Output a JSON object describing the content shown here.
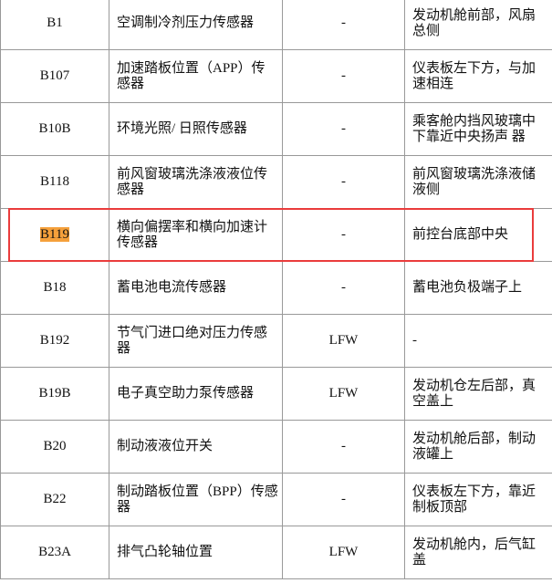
{
  "rows": [
    {
      "code": "B1",
      "name": "空调制冷剂压力传感器",
      "col3": "-",
      "location": "发动机舱前部，风扇 总侧"
    },
    {
      "code": "B107",
      "name": "加速踏板位置（APP）传感器",
      "col3": "-",
      "location": "仪表板左下方，与加 速相连"
    },
    {
      "code": "B10B",
      "name": "环境光照/ 日照传感器",
      "col3": "-",
      "location": "乘客舱内挡风玻璃中 下靠近中央扬声 器"
    },
    {
      "code": "B118",
      "name": "前风窗玻璃洗涤液液位传感器",
      "col3": "-",
      "location": "前风窗玻璃洗涤液储 液侧"
    },
    {
      "code": "B119",
      "name": "横向偏摆率和横向加速计传感器",
      "col3": "-",
      "location": "前控台底部中央"
    },
    {
      "code": "B18",
      "name": "蓄电池电流传感器",
      "col3": "-",
      "location": "蓄电池负极端子上"
    },
    {
      "code": "B192",
      "name": "节气门进口绝对压力传感器",
      "col3": "LFW",
      "location": "-"
    },
    {
      "code": "B19B",
      "name": "电子真空助力泵传感器",
      "col3": "LFW",
      "location": "发动机仓左后部，真 空盖上"
    },
    {
      "code": "B20",
      "name": "制动液液位开关",
      "col3": "-",
      "location": "发动机舱后部，制动 液罐上"
    },
    {
      "code": "B22",
      "name": "制动踏板位置（BPP）传感器",
      "col3": "-",
      "location": "仪表板左下方，靠近 制板顶部"
    },
    {
      "code": "B23A",
      "name": "排气凸轮轴位置",
      "col3": "LFW",
      "location": "发动机舱内，后气缸 盖"
    }
  ],
  "highlight": {
    "row_code": "B119",
    "highlight_color": "#f5a03b",
    "box_color": "#ea3c3c"
  }
}
